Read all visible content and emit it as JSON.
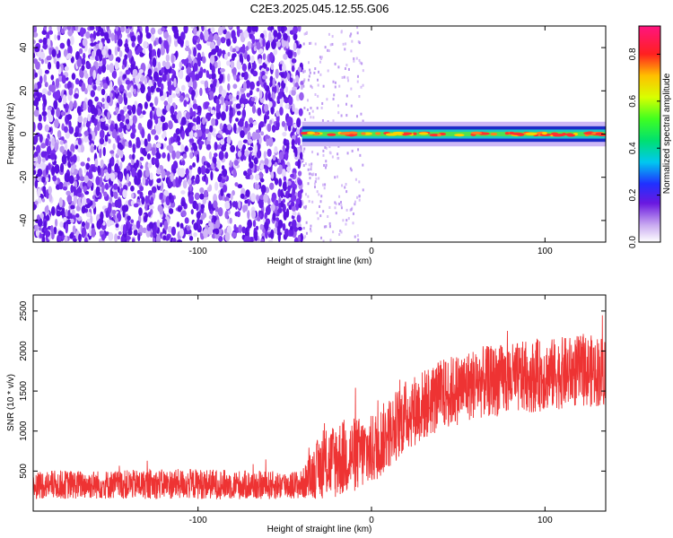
{
  "title": "C2E3.2025.045.12.55.G06",
  "chart_data": [
    {
      "type": "heatmap",
      "xlabel": "Height of straight line (km)",
      "ylabel": "Frequency (Hz)",
      "xlim": [
        -195,
        135
      ],
      "ylim": [
        -50,
        50
      ],
      "xticks": [
        -100,
        0,
        100
      ],
      "yticks": [
        -40,
        -20,
        0,
        20,
        40
      ],
      "colorbar": {
        "label": "Normalized spectral amplitude",
        "range": [
          0.0,
          0.92
        ],
        "ticks": [
          0.0,
          0.2,
          0.4,
          0.6,
          0.8
        ]
      },
      "regions": [
        {
          "x": [
            -195,
            -40
          ],
          "frequency_spread": [
            -50,
            50
          ],
          "amplitude": 0.15
        },
        {
          "x": [
            -40,
            135
          ],
          "frequency_center": 0,
          "frequency_halfwidth": 3,
          "amplitude": 0.9
        }
      ]
    },
    {
      "type": "line",
      "xlabel": "Height of straight line (km)",
      "ylabel": "SNR (10 * v/v)",
      "xlim": [
        -195,
        135
      ],
      "ylim": [
        0,
        2700
      ],
      "xticks": [
        -100,
        0,
        100
      ],
      "yticks": [
        500,
        1000,
        1500,
        2000,
        2500
      ],
      "color": "#ee3333",
      "series": [
        {
          "x": [
            -195,
            -150,
            -100,
            -60,
            -40,
            -30,
            -20,
            0,
            20,
            40,
            60,
            80,
            100,
            120,
            135
          ],
          "mean": [
            330,
            330,
            340,
            320,
            330,
            550,
            650,
            750,
            1200,
            1450,
            1600,
            1650,
            1700,
            1750,
            1750
          ],
          "spread": [
            180,
            180,
            190,
            180,
            180,
            400,
            500,
            450,
            450,
            450,
            450,
            450,
            450,
            450,
            450
          ]
        }
      ]
    }
  ]
}
